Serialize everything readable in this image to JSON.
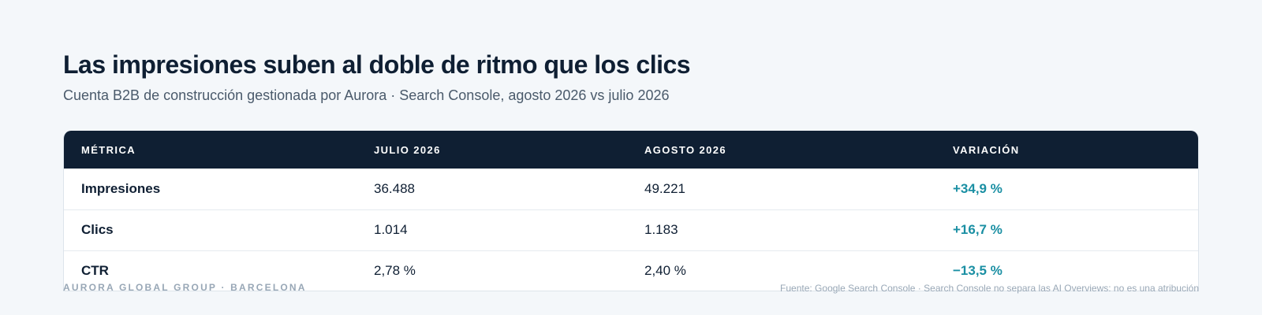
{
  "header": {
    "title": "Las impresiones suben al doble de ritmo que los clics",
    "subtitle": "Cuenta B2B de construcción gestionada por Aurora · Search Console, agosto 2026 vs julio 2026"
  },
  "table": {
    "columns": [
      "MÉTRICA",
      "JULIO 2026",
      "AGOSTO 2026",
      "VARIACIÓN"
    ],
    "rows": [
      {
        "metric": "Impresiones",
        "july": "36.488",
        "august": "49.221",
        "variation": "+34,9 %"
      },
      {
        "metric": "Clics",
        "july": "1.014",
        "august": "1.183",
        "variation": "+16,7 %"
      },
      {
        "metric": "CTR",
        "july": "2,78 %",
        "august": "2,40 %",
        "variation": "−13,5 %"
      }
    ]
  },
  "footer": {
    "brand": "AURORA GLOBAL GROUP · BARCELONA",
    "source": "Fuente: Google Search Console · Search Console no separa las AI Overviews: no es una atribución"
  },
  "colors": {
    "background": "#f4f7fa",
    "header_bg": "#0f1f33",
    "accent": "#1a8fa3",
    "text": "#0f1f33",
    "muted": "#98a7b6"
  }
}
